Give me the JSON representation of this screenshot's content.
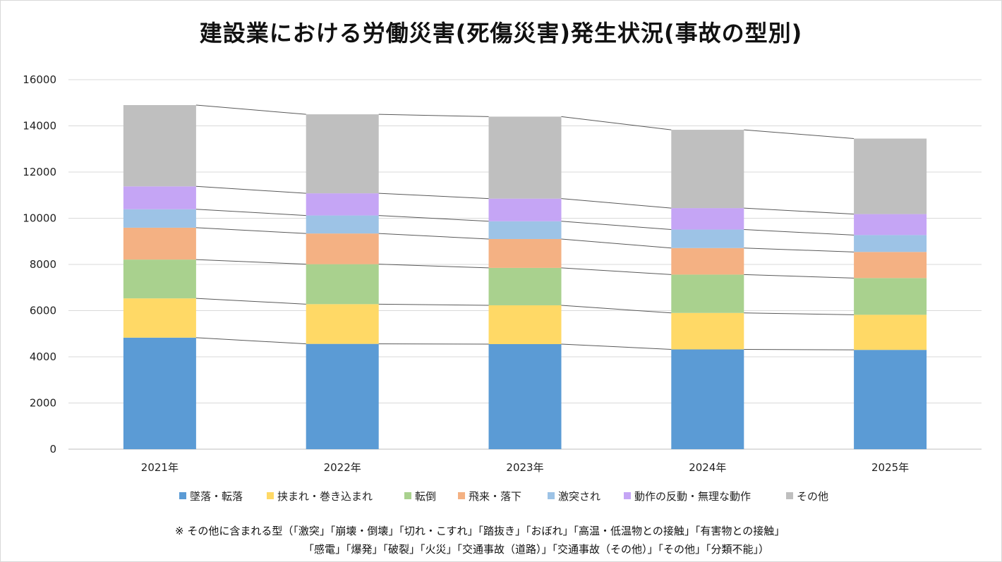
{
  "chart_data": {
    "type": "bar",
    "stacked": true,
    "series_lines": true,
    "title": "建設業における労働災害(死傷災害)発生状況(事故の型別)",
    "categories": [
      "2021年",
      "2022年",
      "2023年",
      "2024年",
      "2025年"
    ],
    "ylim": [
      0,
      16000
    ],
    "yticks": [
      0,
      2000,
      4000,
      6000,
      8000,
      10000,
      12000,
      14000,
      16000
    ],
    "grid": true,
    "legend_position": "bottom",
    "series": [
      {
        "name": "墜落・転落",
        "color": "#5b9bd5",
        "values": [
          4830,
          4560,
          4550,
          4320,
          4300
        ]
      },
      {
        "name": "挟まれ・巻き込まれ",
        "color": "#ffd966",
        "values": [
          1700,
          1720,
          1680,
          1580,
          1520
        ]
      },
      {
        "name": "転倒",
        "color": "#a9d18e",
        "values": [
          1680,
          1730,
          1620,
          1660,
          1590
        ]
      },
      {
        "name": "飛来・落下",
        "color": "#f4b183",
        "values": [
          1380,
          1330,
          1250,
          1150,
          1130
        ]
      },
      {
        "name": "激突され",
        "color": "#9dc3e6",
        "values": [
          800,
          780,
          770,
          800,
          730
        ]
      },
      {
        "name": "動作の反動・無理な動作",
        "color": "#c5a5f5",
        "values": [
          990,
          960,
          980,
          930,
          910
        ]
      },
      {
        "name": "その他",
        "color": "#bfbfbf",
        "values": [
          3520,
          3420,
          3550,
          3390,
          3270
        ]
      }
    ]
  },
  "note": {
    "line1": "※ その他に含まれる型（「激突」「崩壊・倒壊」「切れ・こすれ」「踏抜き」「おぼれ」「高温・低温物との接触」「有害物との接触」",
    "line2": "「感電」「爆発」「破裂」「火災」「交通事故（道路）」「交通事故（その他）」「その他」「分類不能」）"
  }
}
